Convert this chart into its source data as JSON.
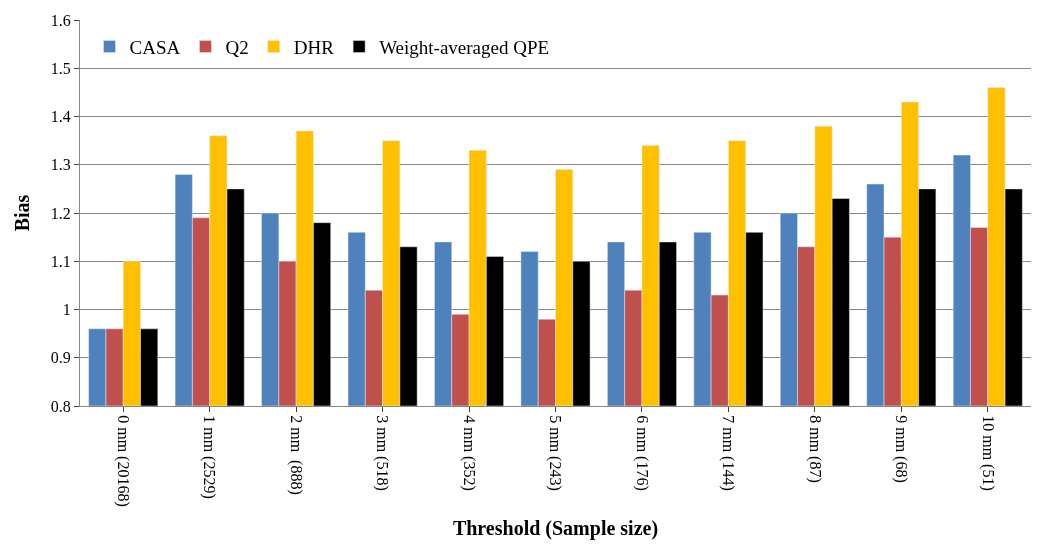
{
  "chart_data": {
    "type": "bar",
    "xlabel": "Threshold (Sample size)",
    "ylabel": "Bias",
    "categories": [
      "0 mm (20168)",
      "1 mm (2529)",
      "2 mm  (888)",
      "3 mm (518)",
      "4 mm (352)",
      "5 mm (243)",
      "6 mm (176)",
      "7 mm (144)",
      "8 mm (87)",
      "9 mm (68)",
      "10 mm (51)"
    ],
    "series": [
      {
        "name": "CASA",
        "color": "#4f81bd",
        "values": [
          0.96,
          1.28,
          1.2,
          1.16,
          1.14,
          1.12,
          1.14,
          1.16,
          1.2,
          1.26,
          1.32
        ]
      },
      {
        "name": "Q2",
        "color": "#c0504d",
        "values": [
          0.96,
          1.19,
          1.1,
          1.04,
          0.99,
          0.98,
          1.04,
          1.03,
          1.13,
          1.15,
          1.17
        ]
      },
      {
        "name": "DHR",
        "color": "#ffc000",
        "values": [
          1.1,
          1.36,
          1.37,
          1.35,
          1.33,
          1.29,
          1.34,
          1.35,
          1.38,
          1.43,
          1.46
        ]
      },
      {
        "name": "Weight-averaged QPE",
        "color": "#000000",
        "values": [
          0.96,
          1.25,
          1.18,
          1.13,
          1.11,
          1.1,
          1.14,
          1.16,
          1.23,
          1.25,
          1.25
        ]
      }
    ],
    "ylim": [
      0.8,
      1.6
    ],
    "yticks": [
      0.8,
      0.9,
      1,
      1.1,
      1.2,
      1.3,
      1.4,
      1.5,
      1.6
    ],
    "grid": "y",
    "legend": "top left"
  }
}
